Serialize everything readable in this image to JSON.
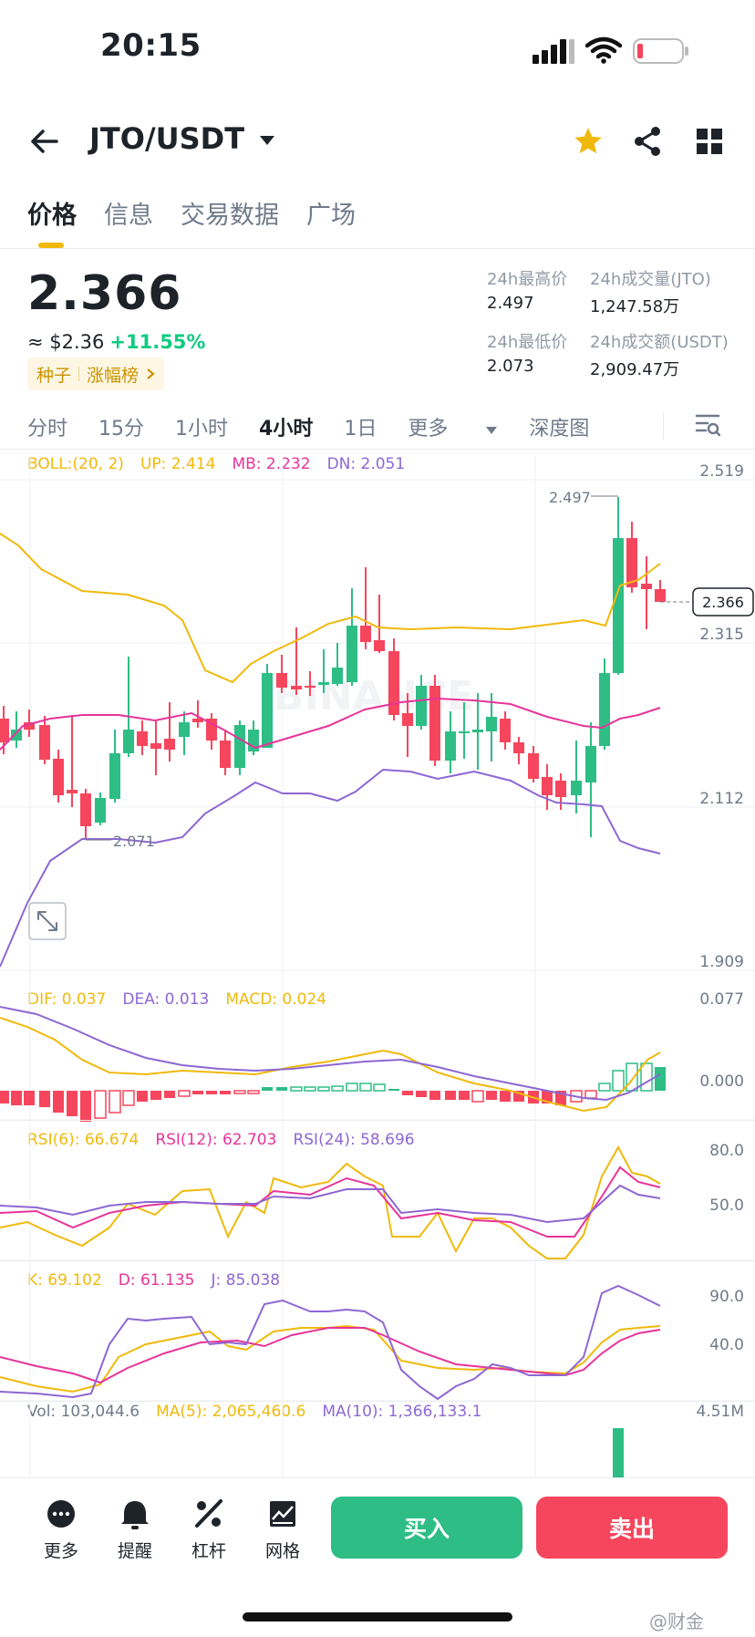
{
  "status_bar": {
    "time": "20:15"
  },
  "header": {
    "pair": "JTO/USDT"
  },
  "tabs": [
    "价格",
    "信息",
    "交易数据",
    "广场"
  ],
  "price": {
    "last": "2.366",
    "usd": "≈ $2.36",
    "change": "+11.55%",
    "tag_primary": "种子",
    "tag_secondary": "涨幅榜"
  },
  "stats": {
    "high_label": "24h最高价",
    "high_value": "2.497",
    "vol_base_label": "24h成交量(JTO)",
    "vol_base_value": "1,247.58万",
    "low_label": "24h最低价",
    "low_value": "2.073",
    "vol_quote_label": "24h成交额(USDT)",
    "vol_quote_value": "2,909.47万"
  },
  "intervals": {
    "items": [
      "分时",
      "15分",
      "1小时",
      "4小时",
      "1日"
    ],
    "active": "4小时",
    "more": "更多",
    "depth": "深度图"
  },
  "boll": {
    "title": "BOLL:(20, 2)",
    "up": "UP: 2.414",
    "mb": "MB: 2.232",
    "dn": "DN: 2.051",
    "yaxis": [
      "2.519",
      "2.315",
      "2.112",
      "1.909"
    ],
    "high_marker": "2.497",
    "low_marker": "2.071",
    "current_tag": "2.366",
    "watermark": "BINANCE"
  },
  "macd": {
    "dif": "DIF: 0.037",
    "dea": "DEA: 0.013",
    "macd": "MACD: 0.024",
    "yaxis": [
      "0.077",
      "0.000"
    ]
  },
  "rsi": {
    "rsi6": "RSI(6): 66.674",
    "rsi12": "RSI(12): 62.703",
    "rsi24": "RSI(24): 58.696",
    "yaxis": [
      "80.0",
      "50.0"
    ]
  },
  "kdj": {
    "k": "K: 69.102",
    "d": "D: 61.135",
    "j": "J: 85.038",
    "yaxis": [
      "90.0",
      "40.0"
    ]
  },
  "vol": {
    "vol": "Vol: 103,044.6",
    "ma5": "MA(5): 2,065,460.6",
    "ma10": "MA(10): 1,366,133.1",
    "yaxis": "4.51M"
  },
  "bottom_nav": {
    "more": "更多",
    "alert": "提醒",
    "leverage": "杠杆",
    "grid": "网格",
    "buy": "买入",
    "sell": "卖出"
  },
  "watermark_text": "@财金",
  "colors": {
    "up": "#2ebd85",
    "down": "#f6465d",
    "accent": "#f0b90b"
  }
}
